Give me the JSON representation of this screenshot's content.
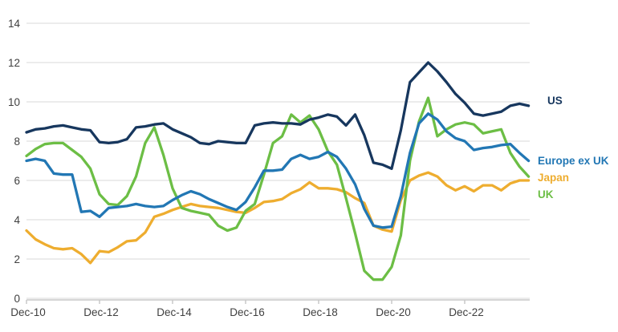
{
  "chart_data": {
    "type": "line",
    "title": "",
    "xlabel": "",
    "ylabel": "",
    "ylim": [
      0,
      14
    ],
    "y_ticks": [
      0,
      2,
      4,
      6,
      8,
      10,
      12,
      14
    ],
    "x_tick_labels": [
      "Dec-10",
      "Dec-12",
      "Dec-14",
      "Dec-16",
      "Dec-18",
      "Dec-20",
      "Dec-22"
    ],
    "x_frequency": "quarterly",
    "x_start": "Dec-10",
    "x_end": "Sep-24",
    "grid": "horizontal",
    "legend_position": "right-of-line-ends",
    "axis_line_color": "#c9c9c9",
    "gridline_color": "#d9d9d9",
    "tick_label_color": "#404040",
    "series": [
      {
        "name": "US",
        "label": "US",
        "color": "#17375e",
        "values": [
          8.45,
          8.6,
          8.65,
          8.75,
          8.8,
          8.7,
          8.6,
          8.55,
          7.95,
          7.9,
          7.95,
          8.1,
          8.7,
          8.75,
          8.85,
          8.9,
          8.6,
          8.4,
          8.2,
          7.9,
          7.85,
          8.0,
          7.95,
          7.9,
          7.9,
          8.8,
          8.9,
          8.95,
          8.9,
          8.9,
          8.85,
          9.1,
          9.2,
          9.35,
          9.25,
          8.8,
          9.35,
          8.3,
          6.9,
          6.8,
          6.6,
          8.55,
          11.0,
          11.5,
          12.0,
          11.55,
          11.0,
          10.4,
          9.95,
          9.4,
          9.3,
          9.4,
          9.5,
          9.8,
          9.9,
          9.8
        ]
      },
      {
        "name": "Europe ex UK",
        "label": "Europe ex UK",
        "color": "#2277b4",
        "values": [
          7.0,
          7.1,
          7.0,
          6.35,
          6.3,
          6.3,
          4.4,
          4.45,
          4.15,
          4.6,
          4.65,
          4.7,
          4.8,
          4.7,
          4.65,
          4.7,
          5.0,
          5.25,
          5.45,
          5.3,
          5.05,
          4.85,
          4.65,
          4.5,
          4.9,
          5.65,
          6.5,
          6.5,
          6.55,
          7.1,
          7.3,
          7.1,
          7.2,
          7.45,
          7.2,
          6.6,
          5.8,
          4.55,
          3.7,
          3.6,
          3.65,
          5.2,
          7.4,
          8.9,
          9.4,
          9.1,
          8.5,
          8.15,
          8.0,
          7.55,
          7.65,
          7.7,
          7.8,
          7.85,
          7.4,
          7.0
        ]
      },
      {
        "name": "Japan",
        "label": "Japan",
        "color": "#eead2f",
        "values": [
          3.45,
          3.0,
          2.75,
          2.55,
          2.5,
          2.55,
          2.25,
          1.8,
          2.4,
          2.35,
          2.6,
          2.9,
          2.95,
          3.35,
          4.15,
          4.3,
          4.5,
          4.65,
          4.8,
          4.7,
          4.65,
          4.6,
          4.5,
          4.4,
          4.35,
          4.6,
          4.9,
          4.95,
          5.05,
          5.35,
          5.55,
          5.9,
          5.6,
          5.6,
          5.55,
          5.4,
          5.1,
          4.85,
          3.7,
          3.5,
          3.4,
          5.0,
          6.0,
          6.25,
          6.4,
          6.2,
          5.75,
          5.5,
          5.7,
          5.45,
          5.75,
          5.75,
          5.5,
          5.85,
          6.0,
          6.0
        ]
      },
      {
        "name": "UK",
        "label": "UK",
        "color": "#6cbe45",
        "values": [
          7.25,
          7.6,
          7.85,
          7.9,
          7.9,
          7.55,
          7.2,
          6.6,
          5.3,
          4.8,
          4.75,
          5.2,
          6.2,
          7.9,
          8.7,
          7.3,
          5.6,
          4.6,
          4.45,
          4.35,
          4.25,
          3.7,
          3.45,
          3.6,
          4.45,
          4.8,
          6.3,
          7.9,
          8.25,
          9.35,
          8.95,
          9.3,
          8.6,
          7.5,
          6.8,
          5.1,
          3.3,
          1.4,
          0.95,
          0.95,
          1.6,
          3.2,
          7.0,
          9.0,
          10.2,
          8.25,
          8.6,
          8.85,
          8.95,
          8.85,
          8.4,
          8.5,
          8.6,
          7.4,
          6.7,
          6.2
        ]
      }
    ]
  }
}
